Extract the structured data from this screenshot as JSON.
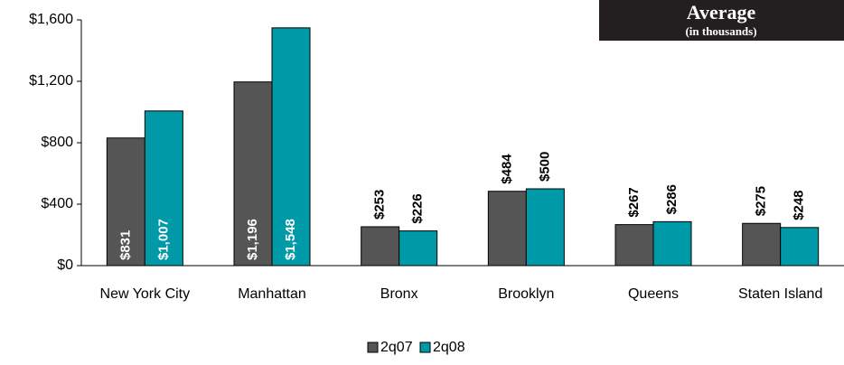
{
  "chart_data": {
    "type": "bar",
    "title": "Average",
    "subtitle": "(in thousands)",
    "categories": [
      "New York City",
      "Manhattan",
      "Bronx",
      "Brooklyn",
      "Queens",
      "Staten Island"
    ],
    "series": [
      {
        "name": "2q07",
        "color": "#555555",
        "values": [
          831,
          1196,
          253,
          484,
          267,
          275
        ],
        "value_labels": [
          "$831",
          "$1,196",
          "$253",
          "$484",
          "$267",
          "$275"
        ]
      },
      {
        "name": "2q08",
        "color": "#0099a8",
        "values": [
          1007,
          1548,
          226,
          500,
          286,
          248
        ],
        "value_labels": [
          "$1,007",
          "$1,548",
          "$226",
          "$500",
          "$286",
          "$248"
        ]
      }
    ],
    "ylim": [
      0,
      1600
    ],
    "yticks": [
      {
        "value": 0,
        "label": "$0"
      },
      {
        "value": 400,
        "label": "$400"
      },
      {
        "value": 800,
        "label": "$800"
      },
      {
        "value": 1200,
        "label": "$1,200"
      },
      {
        "value": 1600,
        "label": "$1,600"
      }
    ],
    "legend": "bottom"
  }
}
